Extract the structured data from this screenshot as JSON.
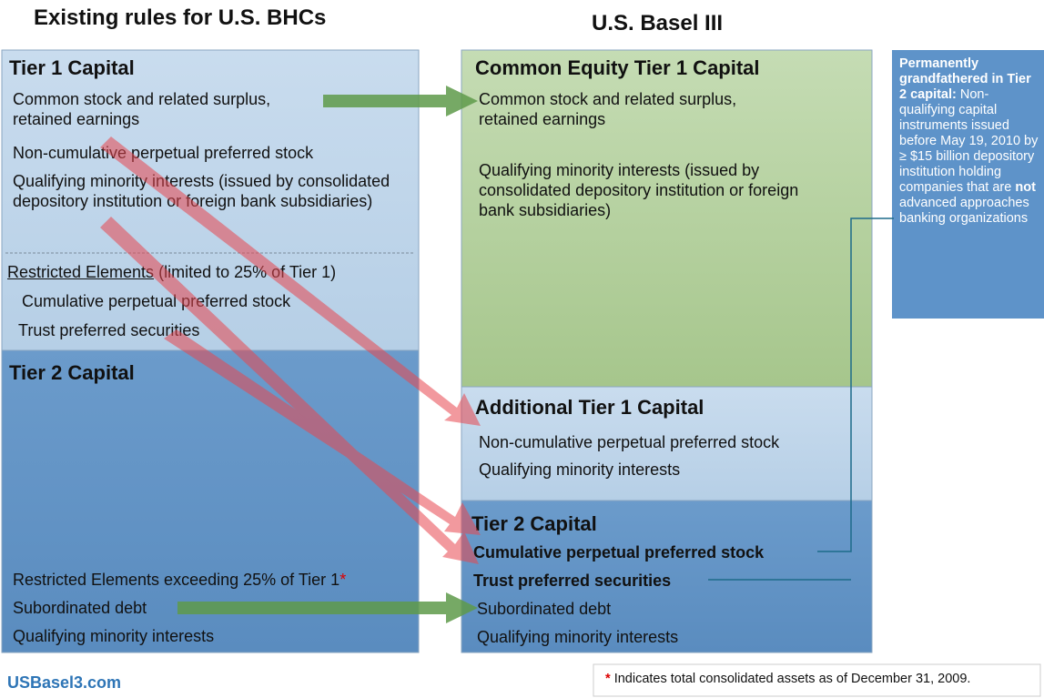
{
  "left": {
    "title": "Existing rules for U.S. BHCs",
    "tier1": {
      "title": "Tier 1 Capital",
      "items": [
        "Common stock and related surplus, retained earnings",
        "Non-cumulative perpetual preferred stock",
        "Qualifying minority interests (issued by consolidated depository institution or foreign bank subsidiaries)"
      ],
      "restricted": {
        "label": "Restricted Elements",
        "note": "(limited to 25% of Tier 1)",
        "items": [
          "Cumulative perpetual preferred stock",
          "Trust preferred securities"
        ]
      }
    },
    "tier2": {
      "title": "Tier 2 Capital",
      "restricted_label": "Restricted Elements exceeding 25% of Tier 1",
      "asterisk": "*",
      "items": [
        "Subordinated debt",
        "Qualifying minority interests"
      ]
    }
  },
  "right": {
    "title": "U.S. Basel III",
    "cet1": {
      "title": "Common Equity Tier 1 Capital",
      "items": [
        "Common stock and related surplus, retained earnings",
        "Qualifying minority interests (issued by consolidated depository institution or foreign bank subsidiaries)"
      ]
    },
    "at1": {
      "title": "Additional Tier 1 Capital",
      "items": [
        "Non-cumulative perpetual preferred stock",
        "Qualifying minority interests"
      ]
    },
    "tier2": {
      "title": "Tier 2 Capital",
      "bold_items": [
        "Cumulative perpetual preferred stock",
        "Trust preferred securities"
      ],
      "items": [
        "Subordinated debt",
        "Qualifying minority interests"
      ]
    }
  },
  "sidebar": {
    "lead": "Permanently grandfathered in Tier 2 capital:",
    "text1": "Non-qualifying capital instruments issued before May 19, 2010 by ≥ $15 billion depository institution holding companies that are",
    "emphasis": "not",
    "text2": "advanced approaches banking organizations"
  },
  "footer": {
    "site": "USBasel3.com",
    "note": {
      "asterisk": "*",
      "text": "Indicates total consolidated assets as of December 31, 2009."
    }
  }
}
